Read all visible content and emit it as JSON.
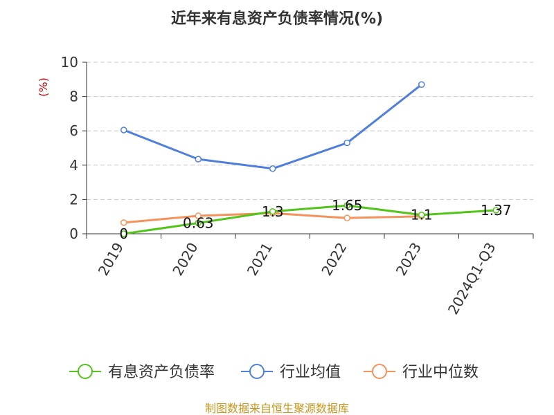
{
  "chart_data": {
    "type": "line",
    "title": "近年来有息资产负债率情况(%)",
    "ylabel": "(%)",
    "xlabel": "",
    "categories": [
      "2019",
      "2020",
      "2021",
      "2022",
      "2023",
      "2024Q1-Q3"
    ],
    "ylim": [
      0,
      10
    ],
    "yticks": [
      0,
      2,
      4,
      6,
      8,
      10
    ],
    "grid": true,
    "legend_position": "bottom",
    "series": [
      {
        "name": "有息资产负债率",
        "color": "#52c41a",
        "values": [
          0,
          0.63,
          1.3,
          1.65,
          1.1,
          1.37
        ],
        "labels": [
          "0",
          "0.63",
          "1.3",
          "1.65",
          "1.1",
          "1.37"
        ]
      },
      {
        "name": "行业均值",
        "color": "#4f7fdc",
        "values": [
          6.05,
          4.35,
          3.8,
          5.3,
          8.7,
          null
        ]
      },
      {
        "name": "行业中位数",
        "color": "#f5915a",
        "values": [
          0.65,
          1.05,
          1.2,
          0.92,
          1.02,
          null
        ]
      }
    ]
  },
  "footer": {
    "source": "制图数据来自恒生聚源数据库"
  }
}
